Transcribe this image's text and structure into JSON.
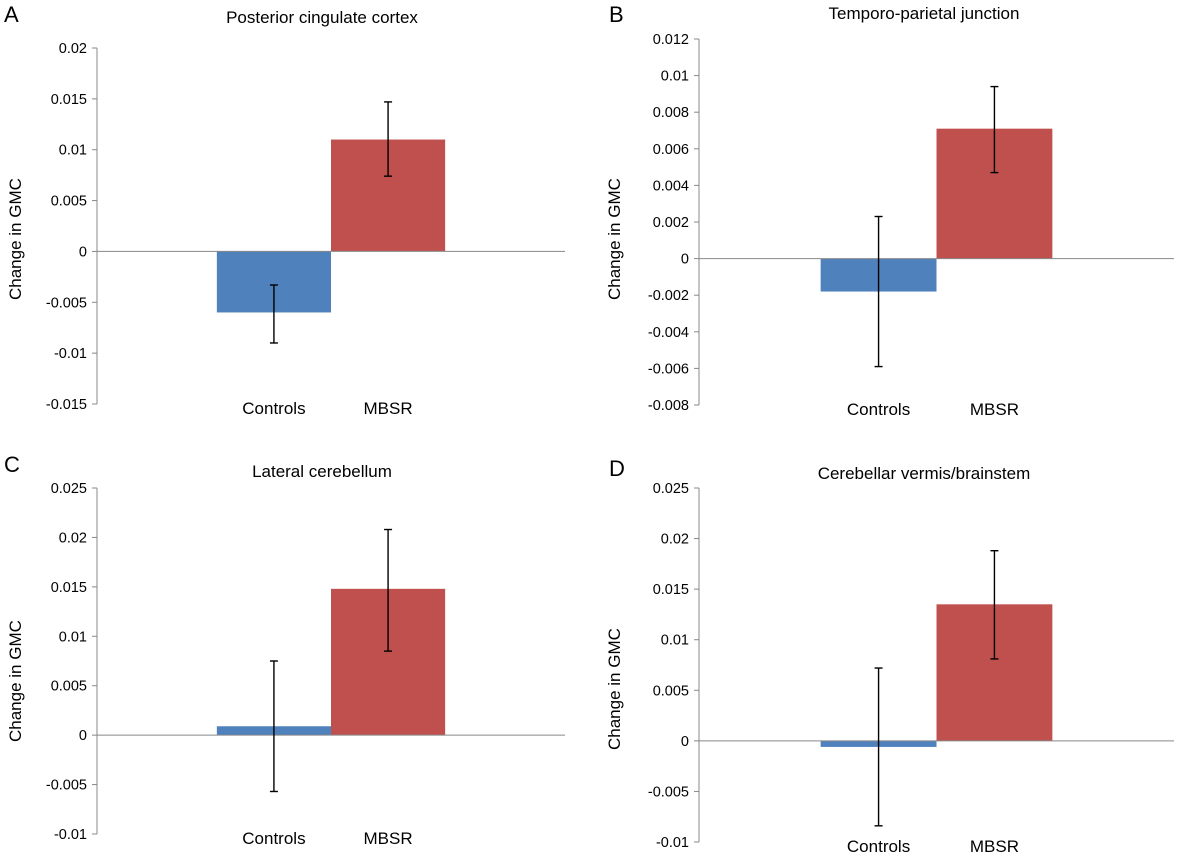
{
  "chart_data": [
    {
      "panel": "A",
      "type": "bar",
      "title": "Posterior cingulate cortex",
      "ylabel": "Change in GMC",
      "xlabel": "",
      "categories": [
        "Controls",
        "MBSR"
      ],
      "values": [
        -0.006,
        0.011
      ],
      "error_low": [
        -0.009,
        0.0074
      ],
      "error_high": [
        -0.0033,
        0.0147
      ],
      "bar_colors": [
        "#4f81bd",
        "#c0504d"
      ],
      "ylim": [
        -0.015,
        0.02
      ],
      "yticks": [
        -0.015,
        -0.01,
        -0.005,
        0,
        0.005,
        0.01,
        0.015,
        0.02
      ],
      "ytick_labels": [
        "-0.015",
        "-0.01",
        "-0.005",
        "0",
        "0.005",
        "0.01",
        "0.015",
        "0.02"
      ],
      "grid": false
    },
    {
      "panel": "B",
      "type": "bar",
      "title": "Temporo-parietal junction",
      "ylabel": "Change in GMC",
      "xlabel": "",
      "categories": [
        "Controls",
        "MBSR"
      ],
      "values": [
        -0.0018,
        0.0071
      ],
      "error_low": [
        -0.0059,
        0.0047
      ],
      "error_high": [
        0.0023,
        0.0094
      ],
      "bar_colors": [
        "#4f81bd",
        "#c0504d"
      ],
      "ylim": [
        -0.008,
        0.012
      ],
      "yticks": [
        -0.008,
        -0.006,
        -0.004,
        -0.002,
        0,
        0.002,
        0.004,
        0.006,
        0.008,
        0.01,
        0.012
      ],
      "ytick_labels": [
        "-0.008",
        "-0.006",
        "-0.004",
        "-0.002",
        "0",
        "0.002",
        "0.004",
        "0.006",
        "0.008",
        "0.01",
        "0.012"
      ],
      "grid": false
    },
    {
      "panel": "C",
      "type": "bar",
      "title": "Lateral cerebellum",
      "ylabel": "Change in GMC",
      "xlabel": "",
      "categories": [
        "Controls",
        "MBSR"
      ],
      "values": [
        0.0009,
        0.0148
      ],
      "error_low": [
        -0.0057,
        0.0085
      ],
      "error_high": [
        0.0075,
        0.0208
      ],
      "bar_colors": [
        "#4f81bd",
        "#c0504d"
      ],
      "ylim": [
        -0.01,
        0.025
      ],
      "yticks": [
        -0.01,
        -0.005,
        0,
        0.005,
        0.01,
        0.015,
        0.02,
        0.025
      ],
      "ytick_labels": [
        "-0.01",
        "-0.005",
        "0",
        "0.005",
        "0.01",
        "0.015",
        "0.02",
        "0.025"
      ],
      "grid": false
    },
    {
      "panel": "D",
      "type": "bar",
      "title": "Cerebellar vermis/brainstem",
      "ylabel": "Change in GMC",
      "xlabel": "",
      "categories": [
        "Controls",
        "MBSR"
      ],
      "values": [
        -0.0006,
        0.0135
      ],
      "error_low": [
        -0.0084,
        0.0081
      ],
      "error_high": [
        0.0072,
        0.0188
      ],
      "bar_colors": [
        "#4f81bd",
        "#c0504d"
      ],
      "ylim": [
        -0.01,
        0.025
      ],
      "yticks": [
        -0.01,
        -0.005,
        0,
        0.005,
        0.01,
        0.015,
        0.02,
        0.025
      ],
      "ytick_labels": [
        "-0.01",
        "-0.005",
        "0",
        "0.005",
        "0.01",
        "0.015",
        "0.02",
        "0.025"
      ],
      "grid": false
    }
  ]
}
